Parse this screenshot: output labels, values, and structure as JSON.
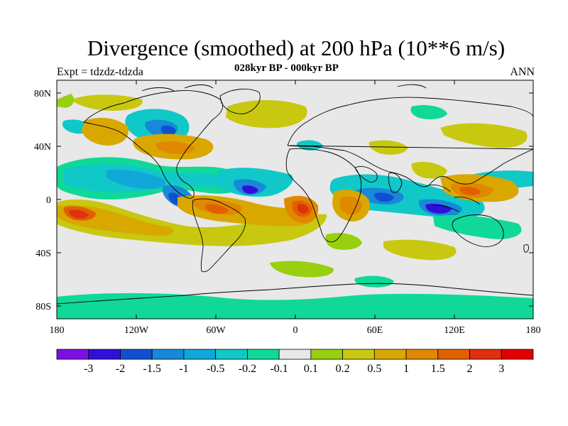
{
  "title": "Divergence (smoothed) at 200 hPa (10**6 m/s)",
  "subtitle": "028kyr BP - 000kyr BP",
  "left_label": "Expt = tdzdz-tdzda",
  "right_label": "ANN",
  "lat_labels": [
    "80N",
    "40N",
    "0",
    "40S",
    "80S"
  ],
  "lon_labels": [
    "180",
    "120W",
    "60W",
    "0",
    "60E",
    "120E",
    "180"
  ],
  "colorbar": {
    "colors": [
      "#7b10e0",
      "#3010d8",
      "#1050d0",
      "#1888d8",
      "#10a8d8",
      "#10c8c8",
      "#10d898",
      "#e8e8e8",
      "#98d010",
      "#c8c810",
      "#d8a800",
      "#e08800",
      "#e06000",
      "#e03010",
      "#e00000"
    ],
    "labels": [
      "-3",
      "-2",
      "-1.5",
      "-1",
      "-0.5",
      "-0.2",
      "-0.1",
      "0.1",
      "0.2",
      "0.5",
      "1",
      "1.5",
      "2",
      "3"
    ]
  },
  "colors": {
    "neutral": "#e8e8e8",
    "coast": "#000000"
  }
}
